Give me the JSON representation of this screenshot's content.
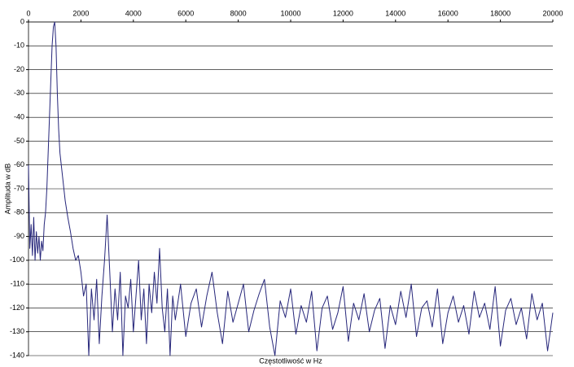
{
  "chart_data": {
    "type": "line",
    "xlabel": "Częstotliwość w Hz",
    "ylabel": "Amplituda w dB",
    "xlim": [
      0,
      20000
    ],
    "xticks": [
      0,
      2000,
      4000,
      6000,
      8000,
      10000,
      12000,
      14000,
      16000,
      18000,
      20000
    ],
    "ylim": [
      -140,
      0
    ],
    "yticks": [
      0,
      -10,
      -20,
      -30,
      -40,
      -50,
      -60,
      -70,
      -80,
      -90,
      -100,
      -110,
      -120,
      -130,
      -140
    ],
    "grid": true,
    "series": [
      {
        "color": "#26267a",
        "x": [
          0,
          50,
          100,
          150,
          200,
          250,
          300,
          350,
          400,
          450,
          500,
          550,
          600,
          650,
          700,
          750,
          800,
          850,
          900,
          950,
          1000,
          1050,
          1100,
          1150,
          1200,
          1300,
          1400,
          1500,
          1600,
          1700,
          1800,
          1900,
          2000,
          2100,
          2200,
          2300,
          2400,
          2500,
          2600,
          2700,
          2800,
          2900,
          3000,
          3100,
          3200,
          3300,
          3400,
          3500,
          3600,
          3700,
          3800,
          3900,
          4000,
          4100,
          4200,
          4300,
          4400,
          4500,
          4600,
          4700,
          4800,
          4900,
          5000,
          5100,
          5200,
          5300,
          5400,
          5500,
          5600,
          5800,
          6000,
          6200,
          6400,
          6600,
          6800,
          7000,
          7200,
          7400,
          7600,
          7800,
          8000,
          8200,
          8400,
          8600,
          8800,
          9000,
          9200,
          9400,
          9600,
          9800,
          10000,
          10200,
          10400,
          10600,
          10800,
          11000,
          11200,
          11400,
          11600,
          11800,
          12000,
          12200,
          12400,
          12600,
          12800,
          13000,
          13200,
          13400,
          13600,
          13800,
          14000,
          14200,
          14400,
          14600,
          14800,
          15000,
          15200,
          15400,
          15600,
          15800,
          16000,
          16200,
          16400,
          16600,
          16800,
          17000,
          17200,
          17400,
          17600,
          17800,
          18000,
          18200,
          18400,
          18600,
          18800,
          19000,
          19200,
          19400,
          19600,
          19800,
          20000
        ],
        "values": [
          -60,
          -95,
          -85,
          -98,
          -82,
          -100,
          -88,
          -97,
          -90,
          -100,
          -92,
          -96,
          -85,
          -80,
          -70,
          -55,
          -40,
          -25,
          -10,
          -2,
          0,
          -10,
          -30,
          -45,
          -55,
          -65,
          -75,
          -82,
          -88,
          -95,
          -100,
          -98,
          -105,
          -115,
          -110,
          -140,
          -112,
          -125,
          -108,
          -135,
          -115,
          -100,
          -81,
          -105,
          -130,
          -112,
          -125,
          -105,
          -140,
          -115,
          -120,
          -108,
          -130,
          -115,
          -100,
          -125,
          -112,
          -135,
          -110,
          -122,
          -105,
          -118,
          -95,
          -120,
          -130,
          -112,
          -140,
          -115,
          -125,
          -110,
          -132,
          -118,
          -112,
          -128,
          -115,
          -105,
          -122,
          -135,
          -113,
          -126,
          -118,
          -110,
          -130,
          -121,
          -114,
          -108,
          -128,
          -140,
          -117,
          -124,
          -112,
          -131,
          -119,
          -126,
          -113,
          -138,
          -120,
          -115,
          -129,
          -122,
          -111,
          -134,
          -118,
          -125,
          -114,
          -130,
          -121,
          -116,
          -137,
          -119,
          -127,
          -113,
          -124,
          -110,
          -132,
          -120,
          -117,
          -128,
          -112,
          -135,
          -122,
          -115,
          -126,
          -119,
          -131,
          -113,
          -124,
          -118,
          -129,
          -111,
          -136,
          -121,
          -116,
          -127,
          -120,
          -133,
          -114,
          -125,
          -118,
          -138,
          -122
        ]
      }
    ]
  }
}
